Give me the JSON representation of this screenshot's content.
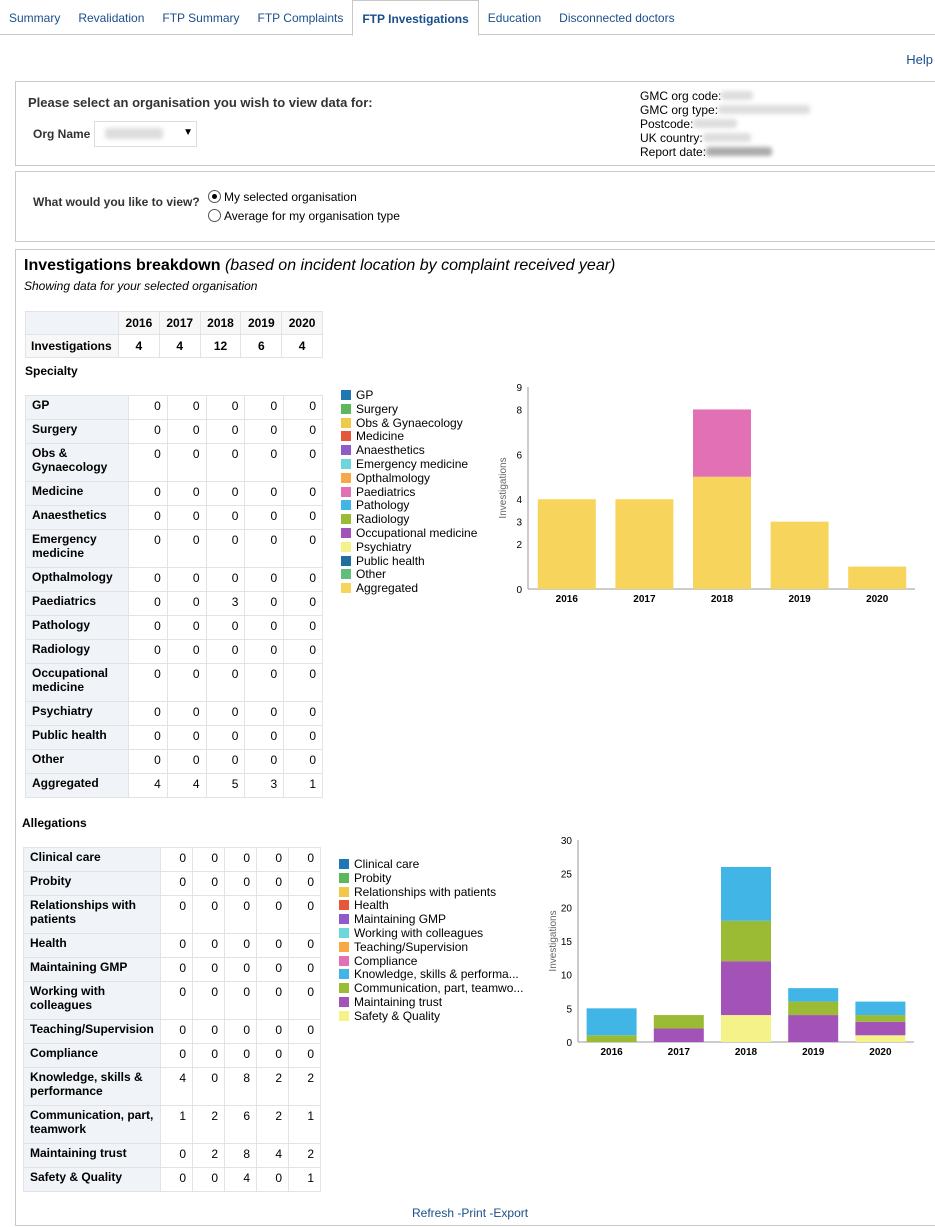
{
  "tabs": [
    {
      "label": "Summary"
    },
    {
      "label": "Revalidation"
    },
    {
      "label": "FTP Summary"
    },
    {
      "label": "FTP Complaints"
    },
    {
      "label": "FTP Investigations",
      "active": true
    },
    {
      "label": "Education"
    },
    {
      "label": "Disconnected doctors"
    }
  ],
  "help_label": "Help",
  "org_select": {
    "prompt": "Please select an organisation you wish to view data for:",
    "org_name_label": "Org Name"
  },
  "org_meta": {
    "gmc_org_code": "GMC org code:",
    "gmc_org_type": "GMC org type:",
    "postcode": "Postcode:",
    "uk_country": "UK country:",
    "report_date": "Report date:"
  },
  "view": {
    "question": "What would you like to view?",
    "option_selected": "My selected organisation",
    "option_average": "Average for my organisation type"
  },
  "breakdown": {
    "title": "Investigations breakdown",
    "subtitle": "(based on incident location by complaint received year)",
    "showing": "Showing data for your selected organisation"
  },
  "years": [
    "2016",
    "2017",
    "2018",
    "2019",
    "2020"
  ],
  "investigations": {
    "label": "Investigations",
    "values": [
      "4",
      "4",
      "12",
      "6",
      "4"
    ]
  },
  "specialty": {
    "heading": "Specialty",
    "rows": [
      {
        "label": "GP",
        "values": [
          "0",
          "0",
          "0",
          "0",
          "0"
        ]
      },
      {
        "label": "Surgery",
        "values": [
          "0",
          "0",
          "0",
          "0",
          "0"
        ]
      },
      {
        "label": "Obs & Gynaecology",
        "values": [
          "0",
          "0",
          "0",
          "0",
          "0"
        ]
      },
      {
        "label": "Medicine",
        "values": [
          "0",
          "0",
          "0",
          "0",
          "0"
        ]
      },
      {
        "label": "Anaesthetics",
        "values": [
          "0",
          "0",
          "0",
          "0",
          "0"
        ]
      },
      {
        "label": "Emergency medicine",
        "values": [
          "0",
          "0",
          "0",
          "0",
          "0"
        ]
      },
      {
        "label": "Opthalmology",
        "values": [
          "0",
          "0",
          "0",
          "0",
          "0"
        ]
      },
      {
        "label": "Paediatrics",
        "values": [
          "0",
          "0",
          "3",
          "0",
          "0"
        ]
      },
      {
        "label": "Pathology",
        "values": [
          "0",
          "0",
          "0",
          "0",
          "0"
        ]
      },
      {
        "label": "Radiology",
        "values": [
          "0",
          "0",
          "0",
          "0",
          "0"
        ]
      },
      {
        "label": "Occupational medicine",
        "values": [
          "0",
          "0",
          "0",
          "0",
          "0"
        ]
      },
      {
        "label": "Psychiatry",
        "values": [
          "0",
          "0",
          "0",
          "0",
          "0"
        ]
      },
      {
        "label": "Public health",
        "values": [
          "0",
          "0",
          "0",
          "0",
          "0"
        ]
      },
      {
        "label": "Other",
        "values": [
          "0",
          "0",
          "0",
          "0",
          "0"
        ]
      },
      {
        "label": "Aggregated",
        "values": [
          "4",
          "4",
          "5",
          "3",
          "1"
        ]
      }
    ],
    "legend": [
      {
        "label": "GP",
        "color": "#1f77b4"
      },
      {
        "label": "Surgery",
        "color": "#5cb85c"
      },
      {
        "label": "Obs & Gynaecology",
        "color": "#f0c94a"
      },
      {
        "label": "Medicine",
        "color": "#e8563a"
      },
      {
        "label": "Anaesthetics",
        "color": "#8e5bc8"
      },
      {
        "label": "Emergency medicine",
        "color": "#6fd6de"
      },
      {
        "label": "Opthalmology",
        "color": "#f7a94a"
      },
      {
        "label": "Paediatrics",
        "color": "#e270b4"
      },
      {
        "label": "Pathology",
        "color": "#41b6e6"
      },
      {
        "label": "Radiology",
        "color": "#9bbb35"
      },
      {
        "label": "Occupational medicine",
        "color": "#a352b8"
      },
      {
        "label": "Psychiatry",
        "color": "#f6f28a"
      },
      {
        "label": "Public health",
        "color": "#1f6e9c"
      },
      {
        "label": "Other",
        "color": "#5fbf7a"
      },
      {
        "label": "Aggregated",
        "color": "#f7d55c"
      }
    ]
  },
  "allegations": {
    "heading": "Allegations",
    "rows": [
      {
        "label": "Clinical care",
        "values": [
          "0",
          "0",
          "0",
          "0",
          "0"
        ]
      },
      {
        "label": "Probity",
        "values": [
          "0",
          "0",
          "0",
          "0",
          "0"
        ]
      },
      {
        "label": "Relationships with patients",
        "values": [
          "0",
          "0",
          "0",
          "0",
          "0"
        ]
      },
      {
        "label": "Health",
        "values": [
          "0",
          "0",
          "0",
          "0",
          "0"
        ]
      },
      {
        "label": "Maintaining GMP",
        "values": [
          "0",
          "0",
          "0",
          "0",
          "0"
        ]
      },
      {
        "label": "Working with colleagues",
        "values": [
          "0",
          "0",
          "0",
          "0",
          "0"
        ]
      },
      {
        "label": "Teaching/Supervision",
        "values": [
          "0",
          "0",
          "0",
          "0",
          "0"
        ]
      },
      {
        "label": "Compliance",
        "values": [
          "0",
          "0",
          "0",
          "0",
          "0"
        ]
      },
      {
        "label": "Knowledge, skills & performance",
        "values": [
          "4",
          "0",
          "8",
          "2",
          "2"
        ]
      },
      {
        "label": "Communication, part, teamwork",
        "values": [
          "1",
          "2",
          "6",
          "2",
          "1"
        ]
      },
      {
        "label": "Maintaining trust",
        "values": [
          "0",
          "2",
          "8",
          "4",
          "2"
        ]
      },
      {
        "label": "Safety & Quality",
        "values": [
          "0",
          "0",
          "4",
          "0",
          "1"
        ]
      }
    ],
    "legend": [
      {
        "label": "Clinical care",
        "color": "#1f77b4"
      },
      {
        "label": "Probity",
        "color": "#5cb85c"
      },
      {
        "label": "Relationships with patients",
        "color": "#f0c94a"
      },
      {
        "label": "Health",
        "color": "#e8563a"
      },
      {
        "label": "Maintaining GMP",
        "color": "#8e5bc8"
      },
      {
        "label": "Working with colleagues",
        "color": "#6fd6de"
      },
      {
        "label": "Teaching/Supervision",
        "color": "#f7a94a"
      },
      {
        "label": "Compliance",
        "color": "#e270b4"
      },
      {
        "label": "Knowledge, skills & performa...",
        "color": "#41b6e6"
      },
      {
        "label": "Communication, part, teamwo...",
        "color": "#9bbb35"
      },
      {
        "label": "Maintaining trust",
        "color": "#a352b8"
      },
      {
        "label": "Safety & Quality",
        "color": "#f6f28a"
      }
    ]
  },
  "chart_data": [
    {
      "type": "bar",
      "stacked": true,
      "ylabel": "Investigations",
      "categories": [
        "2016",
        "2017",
        "2018",
        "2019",
        "2020"
      ],
      "ylim": [
        0,
        9
      ],
      "yticks": [
        "0",
        "2",
        "3",
        "4",
        "6",
        "8",
        "9"
      ],
      "series": [
        {
          "name": "Aggregated",
          "color": "#f7d55c",
          "values": [
            4,
            4,
            5,
            3,
            1
          ]
        },
        {
          "name": "Paediatrics",
          "color": "#e270b4",
          "values": [
            0,
            0,
            3,
            0,
            0
          ]
        }
      ]
    },
    {
      "type": "bar",
      "stacked": true,
      "ylabel": "Investigations",
      "categories": [
        "2016",
        "2017",
        "2018",
        "2019",
        "2020"
      ],
      "ylim": [
        0,
        30
      ],
      "yticks": [
        "0",
        "5",
        "10",
        "15",
        "20",
        "25",
        "30"
      ],
      "series": [
        {
          "name": "Safety & Quality",
          "color": "#f6f28a",
          "values": [
            0,
            0,
            4,
            0,
            1
          ]
        },
        {
          "name": "Maintaining trust",
          "color": "#a352b8",
          "values": [
            0,
            2,
            8,
            4,
            2
          ]
        },
        {
          "name": "Communication, part, teamwo...",
          "color": "#9bbb35",
          "values": [
            1,
            2,
            6,
            2,
            1
          ]
        },
        {
          "name": "Knowledge, skills & performa...",
          "color": "#41b6e6",
          "values": [
            4,
            0,
            8,
            2,
            2
          ]
        }
      ]
    }
  ],
  "footer": {
    "refresh": "Refresh",
    "print": "Print",
    "export": "Export"
  }
}
